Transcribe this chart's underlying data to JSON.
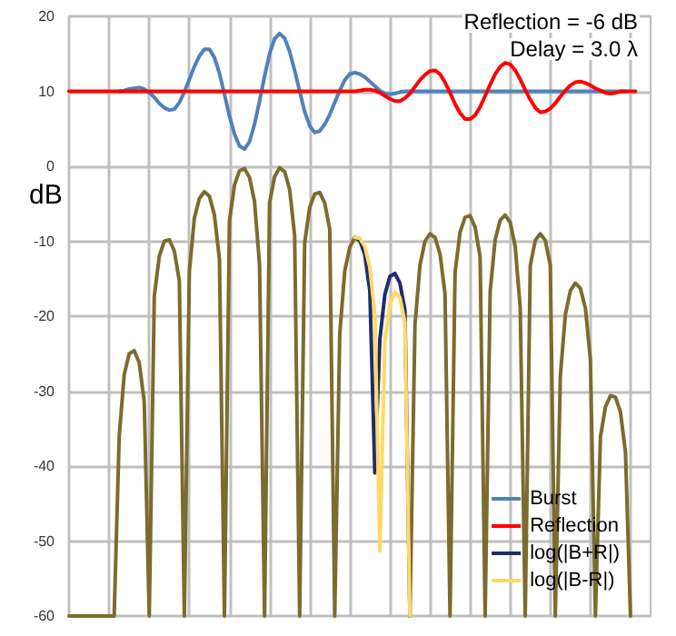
{
  "chart_data": {
    "type": "line",
    "ylabel": "dB",
    "annotations": [
      "Reflection = -6 dB",
      "Delay = 3.0 λ"
    ],
    "categories": [
      null,
      null,
      null,
      null,
      null,
      null,
      null,
      null,
      null,
      null,
      null,
      null,
      null,
      null,
      null,
      null,
      null,
      null,
      null,
      null,
      null,
      null,
      null,
      null,
      null,
      null,
      null,
      null,
      null,
      null,
      null,
      null,
      null,
      null,
      null,
      null,
      null,
      null,
      null,
      null,
      null,
      null,
      null,
      null,
      null,
      null,
      null,
      null,
      null,
      null,
      null,
      null,
      null,
      null,
      null,
      null,
      null,
      null,
      null,
      null,
      null,
      null,
      null,
      null,
      null,
      null,
      null,
      null,
      null,
      null,
      null,
      null,
      null,
      null,
      null,
      null,
      null,
      null,
      null,
      null,
      null,
      null,
      null,
      null,
      null,
      null,
      null,
      null,
      null,
      null,
      null,
      null,
      null,
      null,
      null,
      null,
      null,
      null,
      null,
      null,
      null,
      null,
      null,
      null,
      null,
      null,
      null,
      null,
      null,
      null,
      null,
      null,
      null,
      null,
      null,
      null,
      null
    ],
    "ylim": [
      -60,
      20
    ],
    "yticks": [
      -60,
      -50,
      -40,
      -30,
      -20,
      -10,
      0,
      10,
      20
    ],
    "tick_labels": "y",
    "grid": true,
    "legend": "bottom right",
    "line_style": "solid",
    "series": [
      {
        "color": "#7b6c2e",
        "values": [
          -60,
          -60,
          -60,
          -60,
          -60,
          -60,
          -60,
          -60,
          -60,
          -60,
          -36.1,
          -27.8,
          -25.0,
          -24.6,
          -26.2,
          -31.4,
          -60,
          -17.4,
          -12.0,
          -10.0,
          -9.8,
          -11.3,
          -15.3,
          -60,
          -14.0,
          -6.9,
          -4.3,
          -3.4,
          -4.0,
          -6.5,
          -12.4,
          -60,
          -7.3,
          -2.5,
          -0.6,
          -0.3,
          -1.5,
          -4.7,
          -13.1,
          -60,
          -4.9,
          -1.4,
          -0.2,
          -0.7,
          -3.1,
          -9.2,
          -60,
          -10.2,
          -5.5,
          -3.7,
          -3.5,
          -4.9,
          -8.4,
          -60,
          -22.4,
          -14.0,
          -10.8,
          -9.5,
          null,
          null,
          null,
          null,
          null,
          null,
          null,
          null,
          null,
          null,
          -60,
          -21.2,
          -13.2,
          -10.0,
          -9.0,
          -9.5,
          -11.7,
          -17.0,
          -60,
          -14.2,
          -8.8,
          -6.8,
          -6.6,
          -8.1,
          -12.1,
          -60,
          -16.7,
          -9.8,
          -7.2,
          -6.5,
          -7.5,
          -10.7,
          -18.9,
          -60,
          -13.3,
          -9.9,
          -9.0,
          -9.9,
          -13.2,
          -60,
          -28.0,
          -19.8,
          -16.6,
          -15.6,
          -16.3,
          -18.9,
          -25.8,
          -60,
          -36.1,
          -32.1,
          -30.6,
          -30.8,
          -32.8,
          -38.2,
          -60,
          null,
          null,
          null,
          null
        ]
      },
      {
        "name": "Burst",
        "color": "#4f81bd",
        "values": [
          null,
          null,
          null,
          null,
          null,
          null,
          null,
          null,
          null,
          null,
          10,
          10.1,
          10.3,
          10.4,
          10.5,
          10.3,
          9.8,
          9.2,
          8.4,
          7.8,
          7.5,
          7.6,
          8.5,
          9.9,
          11.6,
          13.3,
          14.7,
          15.6,
          15.6,
          14.5,
          12.4,
          9.6,
          6.7,
          4.3,
          2.7,
          2.3,
          3.3,
          5.6,
          8.7,
          12.0,
          15.0,
          17.0,
          17.7,
          17.1,
          15.3,
          12.8,
          10.0,
          7.3,
          5.4,
          4.5,
          4.7,
          5.6,
          6.9,
          8.5,
          10.1,
          11.5,
          12.3,
          12.5,
          12.3,
          11.9,
          11.3,
          10.7,
          10.1,
          9.7,
          9.6,
          9.7,
          9.9,
          10,
          10,
          10,
          10,
          10,
          10,
          10,
          10,
          10,
          10,
          10,
          10,
          10,
          10,
          10,
          10,
          10,
          10,
          10,
          10,
          10,
          10,
          10,
          10,
          10,
          10,
          10,
          10,
          10,
          10,
          10,
          10,
          10,
          10,
          10,
          10,
          10,
          10,
          10,
          10,
          10,
          10,
          10,
          10,
          10,
          null,
          null,
          null,
          null,
          null
        ]
      },
      {
        "name": "Reflection",
        "color": "#ff0000",
        "values": [
          10,
          10,
          10,
          10,
          10,
          10,
          10,
          10,
          10,
          10,
          10,
          10,
          10,
          10,
          10,
          10,
          10,
          10,
          10,
          10,
          10,
          10,
          10,
          10,
          10,
          10,
          10,
          10,
          10,
          10,
          10,
          10,
          10,
          10,
          10,
          10,
          10,
          10,
          10,
          10,
          10,
          10,
          10,
          10,
          10,
          10,
          10,
          10,
          10,
          10,
          10,
          10,
          10,
          10,
          10,
          10,
          10,
          10.0,
          10.1,
          10.2,
          10.2,
          10.1,
          9.8,
          9.4,
          9.0,
          8.7,
          8.7,
          9.1,
          9.7,
          10.6,
          11.5,
          12.2,
          12.7,
          12.8,
          12.3,
          11.2,
          9.8,
          8.3,
          7.1,
          6.3,
          6.3,
          6.8,
          7.9,
          9.4,
          10.9,
          12.3,
          13.3,
          13.8,
          13.6,
          12.8,
          11.6,
          10.2,
          8.9,
          7.8,
          7.2,
          7.3,
          7.7,
          8.4,
          9.3,
          10.1,
          10.8,
          11.2,
          11.3,
          11.1,
          10.8,
          10.4,
          10.1,
          9.8,
          9.7,
          9.8,
          10.0,
          10,
          10,
          10,
          null,
          null,
          null
        ]
      },
      {
        "name": "log(|B+R|)",
        "color": "#1f2d6b",
        "values": [
          null,
          null,
          null,
          null,
          null,
          null,
          null,
          null,
          null,
          null,
          null,
          null,
          null,
          null,
          null,
          null,
          null,
          null,
          null,
          null,
          null,
          null,
          null,
          null,
          null,
          null,
          null,
          null,
          null,
          null,
          null,
          null,
          null,
          null,
          null,
          null,
          null,
          null,
          null,
          null,
          null,
          null,
          null,
          null,
          null,
          null,
          null,
          null,
          null,
          null,
          null,
          null,
          null,
          null,
          null,
          null,
          null,
          -9.5,
          -9.9,
          -11.8,
          -16.6,
          -40.9,
          -23.1,
          -17.1,
          -14.7,
          -14.3,
          -15.6,
          -19.2,
          -60,
          null,
          null,
          null,
          null,
          null,
          null,
          null,
          null,
          null,
          null,
          null,
          null,
          null,
          null,
          null,
          null,
          null,
          null,
          null,
          null,
          null,
          null,
          null,
          null,
          null,
          null,
          null,
          null,
          null,
          null,
          null,
          null,
          null,
          null,
          null,
          null,
          null,
          null,
          null,
          null,
          null,
          null,
          null,
          null,
          null,
          null,
          null,
          null
        ]
      },
      {
        "name": "log(|B-R|)",
        "color": "#ffd966",
        "values": [
          null,
          null,
          null,
          null,
          null,
          null,
          null,
          null,
          null,
          null,
          null,
          null,
          null,
          null,
          null,
          null,
          null,
          null,
          null,
          null,
          null,
          null,
          null,
          null,
          null,
          null,
          null,
          null,
          null,
          null,
          null,
          null,
          null,
          null,
          null,
          null,
          null,
          null,
          null,
          null,
          null,
          null,
          null,
          null,
          null,
          null,
          null,
          null,
          null,
          null,
          null,
          null,
          null,
          null,
          null,
          null,
          null,
          -9.5,
          -9.6,
          -10.7,
          -13.5,
          -19.7,
          -51.3,
          -23.4,
          -18.5,
          -16.8,
          -17.5,
          -20.8,
          -60,
          null,
          null,
          null,
          null,
          null,
          null,
          null,
          null,
          null,
          null,
          null,
          null,
          null,
          null,
          null,
          null,
          null,
          null,
          null,
          null,
          null,
          null,
          null,
          null,
          null,
          null,
          null,
          null,
          null,
          null,
          null,
          null,
          null,
          null,
          null,
          null,
          null,
          null,
          null,
          null,
          null,
          null,
          null,
          null,
          null,
          null,
          null,
          null
        ]
      }
    ]
  }
}
